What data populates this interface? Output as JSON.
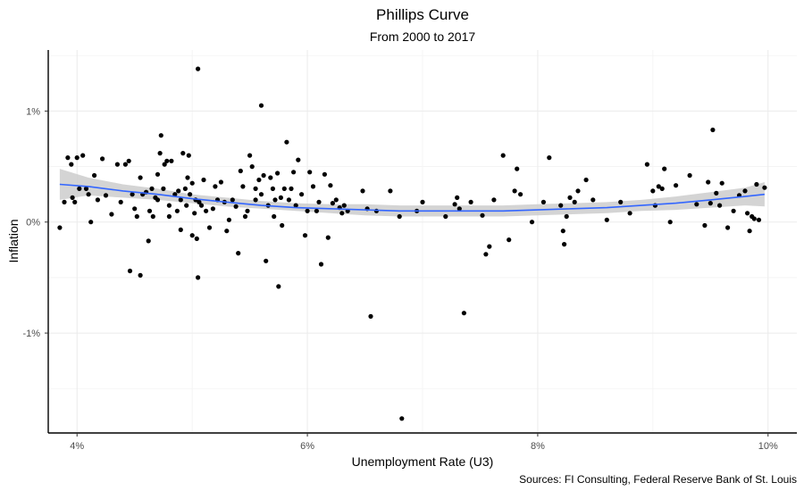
{
  "chart_data": {
    "type": "scatter",
    "title": "Phillips Curve",
    "subtitle": "From 2000 to 2017",
    "xlabel": "Unemployment Rate (U3)",
    "ylabel": "Inflation",
    "caption": "Sources: FI Consulting, Federal Reserve Bank of St. Louis",
    "xlim": [
      3.75,
      10.25
    ],
    "ylim": [
      -1.9,
      1.55
    ],
    "x_ticks": [
      4,
      6,
      8,
      10
    ],
    "x_tick_labels": [
      "4%",
      "6%",
      "8%",
      "10%"
    ],
    "y_ticks": [
      -1,
      0,
      1
    ],
    "y_tick_labels": [
      "-1%",
      "0%",
      "1%"
    ],
    "grid": true,
    "point_color": "#000000",
    "smooth_color": "#3366FF",
    "ribbon_color": "#cccccc",
    "points": [
      [
        3.85,
        -0.05
      ],
      [
        3.89,
        0.18
      ],
      [
        3.92,
        0.58
      ],
      [
        3.95,
        0.52
      ],
      [
        3.96,
        0.22
      ],
      [
        3.98,
        0.18
      ],
      [
        4.0,
        0.58
      ],
      [
        4.02,
        0.3
      ],
      [
        4.05,
        0.6
      ],
      [
        4.08,
        0.3
      ],
      [
        4.1,
        0.25
      ],
      [
        4.12,
        0.0
      ],
      [
        4.15,
        0.42
      ],
      [
        4.18,
        0.2
      ],
      [
        4.22,
        0.57
      ],
      [
        4.25,
        0.24
      ],
      [
        4.3,
        0.07
      ],
      [
        4.35,
        0.52
      ],
      [
        4.38,
        0.18
      ],
      [
        4.42,
        0.52
      ],
      [
        4.45,
        0.55
      ],
      [
        4.46,
        -0.44
      ],
      [
        4.48,
        0.25
      ],
      [
        4.5,
        0.12
      ],
      [
        4.52,
        0.05
      ],
      [
        4.55,
        -0.48
      ],
      [
        4.55,
        0.4
      ],
      [
        4.57,
        0.25
      ],
      [
        4.6,
        0.27
      ],
      [
        4.62,
        -0.17
      ],
      [
        4.63,
        0.1
      ],
      [
        4.65,
        0.3
      ],
      [
        4.66,
        0.05
      ],
      [
        4.68,
        0.22
      ],
      [
        4.7,
        0.43
      ],
      [
        4.7,
        0.2
      ],
      [
        4.72,
        0.62
      ],
      [
        4.73,
        0.78
      ],
      [
        4.75,
        0.3
      ],
      [
        4.76,
        0.52
      ],
      [
        4.78,
        0.55
      ],
      [
        4.8,
        0.15
      ],
      [
        4.8,
        0.05
      ],
      [
        4.82,
        0.55
      ],
      [
        4.85,
        0.25
      ],
      [
        4.87,
        0.1
      ],
      [
        4.88,
        0.28
      ],
      [
        4.9,
        0.2
      ],
      [
        4.9,
        -0.07
      ],
      [
        4.92,
        0.62
      ],
      [
        4.94,
        0.3
      ],
      [
        4.95,
        0.15
      ],
      [
        4.96,
        0.4
      ],
      [
        4.97,
        0.6
      ],
      [
        4.98,
        0.25
      ],
      [
        5.0,
        0.35
      ],
      [
        5.0,
        -0.12
      ],
      [
        5.02,
        0.08
      ],
      [
        5.03,
        0.2
      ],
      [
        5.04,
        -0.15
      ],
      [
        5.05,
        -0.5
      ],
      [
        5.05,
        1.38
      ],
      [
        5.06,
        0.18
      ],
      [
        5.08,
        0.15
      ],
      [
        5.1,
        0.38
      ],
      [
        5.12,
        0.1
      ],
      [
        5.15,
        -0.05
      ],
      [
        5.18,
        0.12
      ],
      [
        5.2,
        0.32
      ],
      [
        5.22,
        0.2
      ],
      [
        5.25,
        0.36
      ],
      [
        5.28,
        0.18
      ],
      [
        5.3,
        -0.08
      ],
      [
        5.32,
        0.02
      ],
      [
        5.35,
        0.2
      ],
      [
        5.38,
        0.14
      ],
      [
        5.4,
        -0.28
      ],
      [
        5.42,
        0.46
      ],
      [
        5.44,
        0.32
      ],
      [
        5.46,
        0.05
      ],
      [
        5.48,
        0.1
      ],
      [
        5.5,
        0.6
      ],
      [
        5.52,
        0.5
      ],
      [
        5.55,
        0.3
      ],
      [
        5.55,
        0.2
      ],
      [
        5.58,
        0.38
      ],
      [
        5.6,
        1.05
      ],
      [
        5.6,
        0.25
      ],
      [
        5.62,
        0.42
      ],
      [
        5.64,
        -0.35
      ],
      [
        5.66,
        0.15
      ],
      [
        5.68,
        0.4
      ],
      [
        5.7,
        0.3
      ],
      [
        5.71,
        0.05
      ],
      [
        5.72,
        0.2
      ],
      [
        5.74,
        0.44
      ],
      [
        5.75,
        -0.58
      ],
      [
        5.77,
        0.22
      ],
      [
        5.78,
        -0.03
      ],
      [
        5.8,
        0.3
      ],
      [
        5.82,
        0.72
      ],
      [
        5.84,
        0.2
      ],
      [
        5.86,
        0.3
      ],
      [
        5.88,
        0.45
      ],
      [
        5.9,
        0.15
      ],
      [
        5.92,
        0.56
      ],
      [
        5.95,
        0.25
      ],
      [
        5.98,
        -0.12
      ],
      [
        6.0,
        0.1
      ],
      [
        6.02,
        0.45
      ],
      [
        6.05,
        0.32
      ],
      [
        6.08,
        0.1
      ],
      [
        6.1,
        0.18
      ],
      [
        6.12,
        -0.38
      ],
      [
        6.15,
        0.43
      ],
      [
        6.18,
        -0.14
      ],
      [
        6.2,
        0.33
      ],
      [
        6.22,
        0.17
      ],
      [
        6.25,
        0.2
      ],
      [
        6.28,
        0.13
      ],
      [
        6.3,
        0.08
      ],
      [
        6.32,
        0.15
      ],
      [
        6.35,
        0.1
      ],
      [
        6.48,
        0.28
      ],
      [
        6.52,
        0.12
      ],
      [
        6.55,
        -0.85
      ],
      [
        6.6,
        0.1
      ],
      [
        6.72,
        0.28
      ],
      [
        6.8,
        0.05
      ],
      [
        6.82,
        -1.77
      ],
      [
        6.95,
        0.1
      ],
      [
        7.0,
        0.18
      ],
      [
        7.2,
        0.05
      ],
      [
        7.28,
        0.16
      ],
      [
        7.3,
        0.22
      ],
      [
        7.32,
        0.12
      ],
      [
        7.36,
        -0.82
      ],
      [
        7.42,
        0.18
      ],
      [
        7.52,
        0.06
      ],
      [
        7.55,
        -0.29
      ],
      [
        7.58,
        -0.22
      ],
      [
        7.62,
        0.2
      ],
      [
        7.7,
        0.6
      ],
      [
        7.75,
        -0.16
      ],
      [
        7.8,
        0.28
      ],
      [
        7.82,
        0.48
      ],
      [
        7.85,
        0.25
      ],
      [
        7.95,
        0.0
      ],
      [
        8.05,
        0.18
      ],
      [
        8.1,
        0.58
      ],
      [
        8.2,
        0.15
      ],
      [
        8.22,
        -0.08
      ],
      [
        8.23,
        -0.2
      ],
      [
        8.25,
        0.05
      ],
      [
        8.28,
        0.22
      ],
      [
        8.32,
        0.18
      ],
      [
        8.35,
        0.28
      ],
      [
        8.42,
        0.38
      ],
      [
        8.48,
        0.2
      ],
      [
        8.6,
        0.02
      ],
      [
        8.72,
        0.18
      ],
      [
        8.8,
        0.08
      ],
      [
        8.95,
        0.52
      ],
      [
        9.0,
        0.28
      ],
      [
        9.02,
        0.15
      ],
      [
        9.05,
        0.32
      ],
      [
        9.08,
        0.3
      ],
      [
        9.1,
        0.48
      ],
      [
        9.15,
        0.0
      ],
      [
        9.2,
        0.33
      ],
      [
        9.32,
        0.42
      ],
      [
        9.38,
        0.16
      ],
      [
        9.45,
        -0.03
      ],
      [
        9.48,
        0.36
      ],
      [
        9.5,
        0.17
      ],
      [
        9.52,
        0.83
      ],
      [
        9.55,
        0.26
      ],
      [
        9.58,
        0.15
      ],
      [
        9.6,
        0.35
      ],
      [
        9.65,
        -0.05
      ],
      [
        9.7,
        0.1
      ],
      [
        9.75,
        0.24
      ],
      [
        9.8,
        0.28
      ],
      [
        9.82,
        0.08
      ],
      [
        9.84,
        -0.08
      ],
      [
        9.86,
        0.05
      ],
      [
        9.88,
        0.03
      ],
      [
        9.9,
        0.34
      ],
      [
        9.92,
        0.02
      ],
      [
        9.97,
        0.31
      ]
    ],
    "smooth": {
      "x": [
        3.85,
        4.1,
        4.4,
        4.7,
        5.0,
        5.3,
        5.6,
        5.9,
        6.2,
        6.5,
        6.8,
        7.1,
        7.4,
        7.7,
        8.0,
        8.3,
        8.6,
        8.9,
        9.2,
        9.5,
        9.8,
        9.97
      ],
      "y": [
        0.34,
        0.32,
        0.28,
        0.25,
        0.21,
        0.18,
        0.15,
        0.13,
        0.12,
        0.11,
        0.1,
        0.1,
        0.1,
        0.1,
        0.11,
        0.12,
        0.13,
        0.15,
        0.17,
        0.2,
        0.23,
        0.25
      ],
      "lower": [
        0.2,
        0.24,
        0.22,
        0.2,
        0.17,
        0.14,
        0.12,
        0.1,
        0.08,
        0.06,
        0.05,
        0.05,
        0.05,
        0.05,
        0.06,
        0.07,
        0.08,
        0.1,
        0.11,
        0.13,
        0.15,
        0.14
      ],
      "upper": [
        0.48,
        0.4,
        0.34,
        0.3,
        0.25,
        0.22,
        0.19,
        0.17,
        0.16,
        0.16,
        0.15,
        0.15,
        0.15,
        0.15,
        0.16,
        0.17,
        0.18,
        0.2,
        0.23,
        0.27,
        0.31,
        0.36
      ]
    }
  }
}
